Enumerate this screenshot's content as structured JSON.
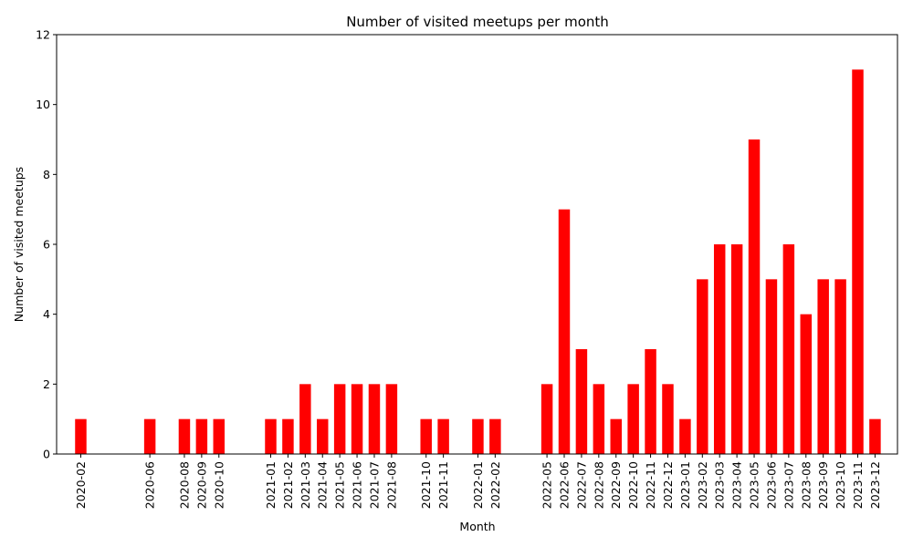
{
  "chart_data": {
    "type": "bar",
    "title": "Number of visited meetups per month",
    "xlabel": "Month",
    "ylabel": "Number of visited meetups",
    "ylim": [
      0,
      12
    ],
    "yticks": [
      0,
      2,
      4,
      6,
      8,
      10,
      12
    ],
    "bar_color": "#ff0000",
    "grid": false,
    "x_axis": "monthly timeline from 2020-01 to 2024-01",
    "categories": [
      "2020-02",
      "2020-06",
      "2020-08",
      "2020-09",
      "2020-10",
      "2021-01",
      "2021-02",
      "2021-03",
      "2021-04",
      "2021-05",
      "2021-06",
      "2021-07",
      "2021-08",
      "2021-10",
      "2021-11",
      "2022-01",
      "2022-02",
      "2022-05",
      "2022-06",
      "2022-07",
      "2022-08",
      "2022-09",
      "2022-10",
      "2022-11",
      "2022-12",
      "2023-01",
      "2023-02",
      "2023-03",
      "2023-04",
      "2023-05",
      "2023-06",
      "2023-07",
      "2023-08",
      "2023-09",
      "2023-10",
      "2023-11",
      "2023-12"
    ],
    "values": [
      1,
      1,
      1,
      1,
      1,
      1,
      1,
      2,
      1,
      2,
      2,
      2,
      2,
      1,
      1,
      1,
      1,
      2,
      7,
      3,
      2,
      1,
      2,
      3,
      2,
      1,
      5,
      6,
      6,
      9,
      5,
      6,
      4,
      5,
      5,
      11,
      1
    ]
  }
}
